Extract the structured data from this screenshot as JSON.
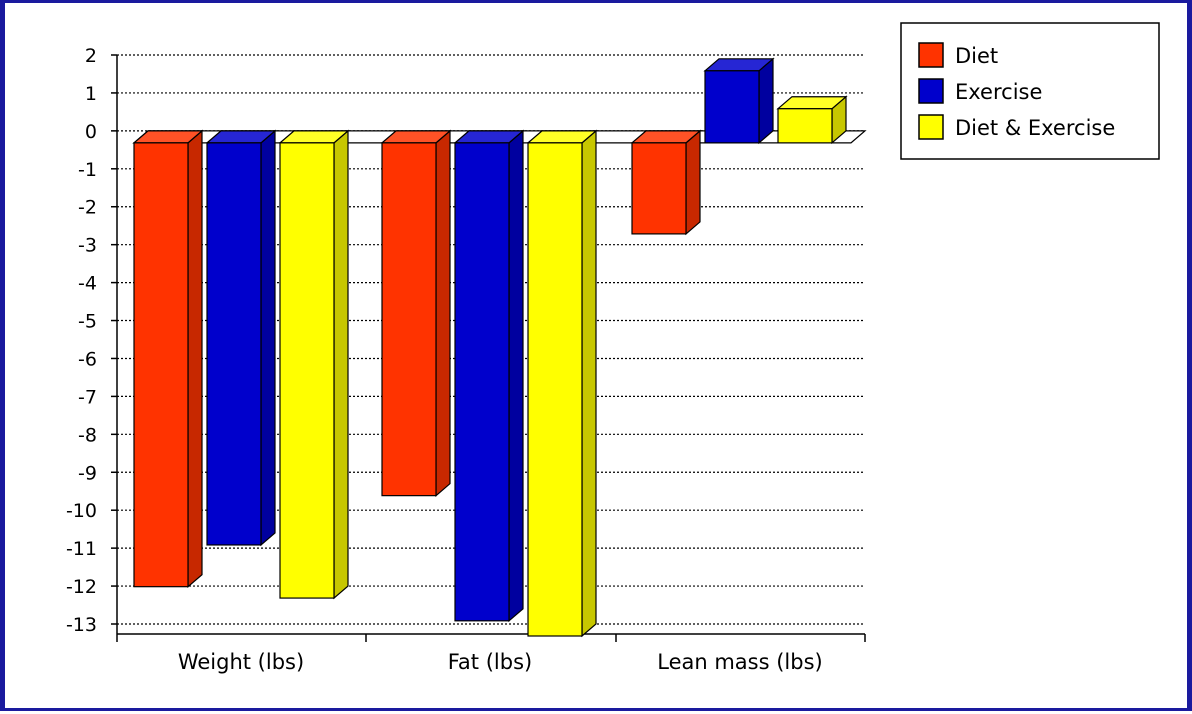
{
  "chart_data": {
    "type": "bar",
    "style": "3d-clustered-column",
    "categories": [
      "Weight (lbs)",
      "Fat (lbs)",
      "Lean mass (lbs)"
    ],
    "series": [
      {
        "name": "Diet",
        "values": [
          -11.7,
          -9.3,
          -2.4
        ],
        "color": "#ff3300"
      },
      {
        "name": "Exercise",
        "values": [
          -10.6,
          -12.6,
          1.9
        ],
        "color": "#0000cc"
      },
      {
        "name": "Diet & Exercise",
        "values": [
          -12.0,
          -13.0,
          0.9
        ],
        "color": "#ffff00"
      }
    ],
    "ylim": [
      -13,
      2
    ],
    "yticks": [
      "2",
      "1",
      "0",
      "-1",
      "-2",
      "-3",
      "-4",
      "-5",
      "-6",
      "-7",
      "-8",
      "-9",
      "-10",
      "-11",
      "-12",
      "-13"
    ],
    "grid": true,
    "legend_position": "top-right"
  }
}
